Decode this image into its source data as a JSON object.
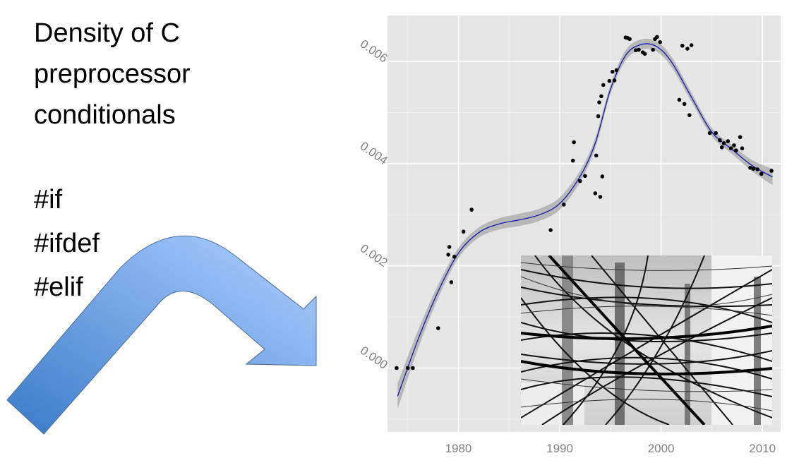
{
  "slide": {
    "title_lines": [
      "Density of C",
      "preprocessor",
      "conditionals"
    ],
    "directives": [
      "#if",
      "#ifdef",
      "#elif"
    ]
  },
  "colors": {
    "panel_bg": "#e5e5e5",
    "grid": "#ffffff",
    "points": "#000000",
    "smooth_line": "#1a1aa6",
    "confidence_band": "#a8a8a8",
    "arrow_start": "#3a7ac8",
    "arrow_end": "#9ec4f9",
    "tick_text": "#7f7f7f"
  },
  "chart_data": {
    "type": "scatter",
    "title": "",
    "xlabel": "",
    "ylabel": "",
    "xlim": [
      1973,
      2011.8
    ],
    "ylim": [
      -0.00125,
      0.0069
    ],
    "x_ticks": [
      1980,
      1990,
      2000,
      2010
    ],
    "y_ticks": [
      0.0,
      0.002,
      0.004,
      0.006
    ],
    "y_tick_labels": [
      "0.000",
      "0.002",
      "0.004",
      "0.006"
    ],
    "x_tick_labels": [
      "1980",
      "1990",
      "2000",
      "2010"
    ],
    "grid": true,
    "legend": "none",
    "points": [
      {
        "x": 1973.9,
        "y": 0.0
      },
      {
        "x": 1975.0,
        "y": 0.0
      },
      {
        "x": 1975.5,
        "y": 0.0
      },
      {
        "x": 1978.0,
        "y": 0.00078
      },
      {
        "x": 1979.0,
        "y": 0.00222
      },
      {
        "x": 1979.1,
        "y": 0.00237
      },
      {
        "x": 1979.3,
        "y": 0.00168
      },
      {
        "x": 1979.6,
        "y": 0.00218
      },
      {
        "x": 1980.5,
        "y": 0.00267
      },
      {
        "x": 1981.3,
        "y": 0.0031
      },
      {
        "x": 1989.1,
        "y": 0.0027
      },
      {
        "x": 1990.4,
        "y": 0.0032
      },
      {
        "x": 1991.3,
        "y": 0.00406
      },
      {
        "x": 1991.4,
        "y": 0.00442
      },
      {
        "x": 1992.0,
        "y": 0.00366
      },
      {
        "x": 1992.5,
        "y": 0.00376
      },
      {
        "x": 1993.5,
        "y": 0.00342
      },
      {
        "x": 1993.6,
        "y": 0.00416
      },
      {
        "x": 1993.8,
        "y": 0.00493
      },
      {
        "x": 1993.9,
        "y": 0.0052
      },
      {
        "x": 1994.0,
        "y": 0.00335
      },
      {
        "x": 1994.1,
        "y": 0.00532
      },
      {
        "x": 1994.2,
        "y": 0.00375
      },
      {
        "x": 1994.3,
        "y": 0.00554
      },
      {
        "x": 1994.9,
        "y": 0.00562
      },
      {
        "x": 1995.2,
        "y": 0.0058
      },
      {
        "x": 1995.4,
        "y": 0.00563
      },
      {
        "x": 1995.6,
        "y": 0.00583
      },
      {
        "x": 1996.5,
        "y": 0.00647
      },
      {
        "x": 1996.7,
        "y": 0.00646
      },
      {
        "x": 1996.9,
        "y": 0.00644
      },
      {
        "x": 1997.5,
        "y": 0.00622
      },
      {
        "x": 1997.8,
        "y": 0.00623
      },
      {
        "x": 1998.2,
        "y": 0.00618
      },
      {
        "x": 1998.4,
        "y": 0.00615
      },
      {
        "x": 1999.2,
        "y": 0.00623
      },
      {
        "x": 1999.4,
        "y": 0.00644
      },
      {
        "x": 1999.6,
        "y": 0.00648
      },
      {
        "x": 1999.9,
        "y": 0.00638
      },
      {
        "x": 2001.8,
        "y": 0.00525
      },
      {
        "x": 2002.1,
        "y": 0.00631
      },
      {
        "x": 2002.3,
        "y": 0.00517
      },
      {
        "x": 2002.6,
        "y": 0.00625
      },
      {
        "x": 2002.8,
        "y": 0.00495
      },
      {
        "x": 2003.0,
        "y": 0.00632
      },
      {
        "x": 2004.8,
        "y": 0.0046
      },
      {
        "x": 2005.4,
        "y": 0.0046
      },
      {
        "x": 2005.8,
        "y": 0.00446
      },
      {
        "x": 2006.0,
        "y": 0.00432
      },
      {
        "x": 2006.2,
        "y": 0.0044
      },
      {
        "x": 2006.6,
        "y": 0.00444
      },
      {
        "x": 2006.9,
        "y": 0.0043
      },
      {
        "x": 2007.2,
        "y": 0.00436
      },
      {
        "x": 2007.4,
        "y": 0.00426
      },
      {
        "x": 2007.8,
        "y": 0.00452
      },
      {
        "x": 2008.0,
        "y": 0.0043
      },
      {
        "x": 2008.8,
        "y": 0.00392
      },
      {
        "x": 2009.1,
        "y": 0.0039
      },
      {
        "x": 2009.5,
        "y": 0.00389
      },
      {
        "x": 2009.9,
        "y": 0.0038
      },
      {
        "x": 2010.9,
        "y": 0.00386
      }
    ],
    "smooth": [
      {
        "x": 1974,
        "y": -0.00055,
        "se": 0.00025
      },
      {
        "x": 1976,
        "y": 0.00055,
        "se": 0.00018
      },
      {
        "x": 1978,
        "y": 0.0015,
        "se": 0.00013
      },
      {
        "x": 1980,
        "y": 0.00225,
        "se": 0.0001
      },
      {
        "x": 1982,
        "y": 0.00265,
        "se": 0.0001
      },
      {
        "x": 1984,
        "y": 0.00282,
        "se": 0.00011
      },
      {
        "x": 1986,
        "y": 0.0029,
        "se": 0.00012
      },
      {
        "x": 1988,
        "y": 0.003,
        "se": 0.00012
      },
      {
        "x": 1990,
        "y": 0.00322,
        "se": 0.00012
      },
      {
        "x": 1992,
        "y": 0.00375,
        "se": 0.00011
      },
      {
        "x": 1993.5,
        "y": 0.0044,
        "se": 0.0001
      },
      {
        "x": 1995,
        "y": 0.00545,
        "se": 9e-05
      },
      {
        "x": 1996.5,
        "y": 0.00612,
        "se": 0.0001
      },
      {
        "x": 1998,
        "y": 0.00633,
        "se": 0.0001
      },
      {
        "x": 1999.5,
        "y": 0.0063,
        "se": 0.0001
      },
      {
        "x": 2001,
        "y": 0.006,
        "se": 0.0001
      },
      {
        "x": 2003,
        "y": 0.0053,
        "se": 9e-05
      },
      {
        "x": 2005,
        "y": 0.00462,
        "se": 8e-05
      },
      {
        "x": 2007,
        "y": 0.00428,
        "se": 9e-05
      },
      {
        "x": 2009,
        "y": 0.00396,
        "se": 0.00011
      },
      {
        "x": 2011,
        "y": 0.00374,
        "se": 0.00016
      }
    ]
  }
}
